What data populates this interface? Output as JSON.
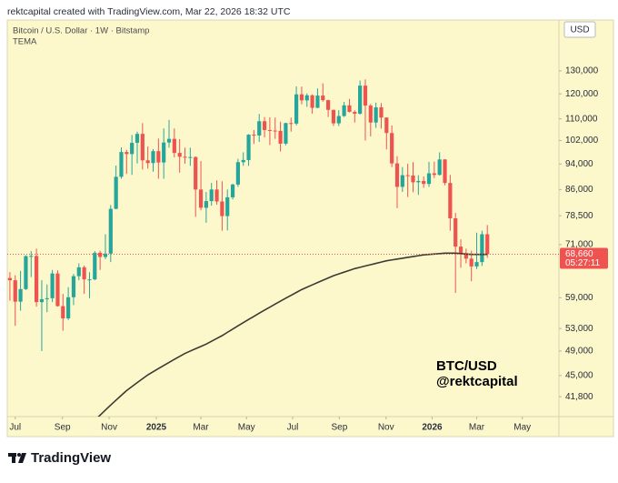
{
  "chart_data": {
    "type": "candlestick",
    "header": "rektcapital created with TradingView.com, Mar 22, 2026 18:32 UTC",
    "title": "Bitcoin / U.S. Dollar · 1W · Bitstamp",
    "axis_unit": "USD",
    "brand": "TradingView",
    "annotations": [
      "BTC/USD",
      "@rektcapital"
    ],
    "log_scale": true,
    "grid": false,
    "up_color": "#26a69a",
    "down_color": "#ef5350",
    "background": "#fcf8cc",
    "categories": [
      null,
      null,
      null,
      null,
      null,
      null,
      null,
      null,
      null,
      null,
      null,
      null,
      null,
      null,
      null,
      null,
      null,
      null,
      null,
      null,
      null,
      null,
      null,
      null,
      null,
      null,
      null,
      null,
      null,
      null,
      null,
      null,
      null,
      null,
      null,
      null,
      null,
      null,
      null,
      null,
      null,
      null,
      null,
      null,
      null,
      null,
      null,
      null,
      null,
      null,
      null,
      null,
      null,
      null,
      null,
      null,
      null,
      null,
      null,
      null,
      null,
      null,
      null,
      null,
      null,
      null,
      null,
      null,
      null,
      null,
      null,
      null,
      null,
      null,
      null,
      null,
      null,
      null,
      null,
      null,
      null,
      null,
      null,
      null,
      null,
      null,
      null,
      null,
      null,
      null,
      null
    ],
    "open": [
      63200,
      62700,
      58200,
      60800,
      68200,
      68250,
      58100,
      58700,
      58900,
      64200,
      57300,
      54900,
      59100,
      63600,
      65600,
      62900,
      62900,
      69000,
      68000,
      68800,
      80400,
      89900,
      98000,
      97300,
      101200,
      104400,
      95200,
      94300,
      98300,
      94500,
      101300,
      102600,
      97700,
      96400,
      96100,
      96300,
      86000,
      80700,
      82600,
      86000,
      82500,
      78400,
      83700,
      87500,
      94600,
      95300,
      104100,
      103800,
      109100,
      105800,
      105600,
      105500,
      100900,
      108400,
      108200,
      119800,
      117300,
      119400,
      114300,
      119300,
      117400,
      113500,
      108300,
      111100,
      115300,
      112700,
      112000,
      123500,
      115200,
      108600,
      114500,
      110500,
      104700,
      94200,
      86800,
      90400,
      90300,
      88200,
      88600,
      87700,
      91000,
      90500,
      95500,
      88000,
      77800,
      70500,
      68900,
      67600,
      65800,
      66800,
      73600
    ],
    "high": [
      64500,
      63800,
      64800,
      68400,
      69400,
      70000,
      62700,
      61800,
      65000,
      64900,
      59800,
      61200,
      64100,
      66500,
      66000,
      64500,
      69400,
      69500,
      73600,
      81500,
      93500,
      99600,
      98700,
      104000,
      105200,
      108400,
      99900,
      99000,
      102700,
      106400,
      109600,
      106400,
      102500,
      99500,
      99500,
      96500,
      95000,
      85300,
      88000,
      88800,
      88500,
      86000,
      87800,
      95700,
      97900,
      104300,
      105800,
      111900,
      110700,
      110600,
      110500,
      108900,
      108500,
      110500,
      123200,
      123100,
      120200,
      119800,
      122300,
      124500,
      117600,
      113600,
      113400,
      116700,
      117900,
      113300,
      125700,
      126200,
      115900,
      116400,
      116200,
      110600,
      107500,
      96600,
      93000,
      94100,
      94600,
      90400,
      90000,
      94700,
      94800,
      97900,
      95600,
      90500,
      79300,
      72300,
      70000,
      69500,
      74000,
      74500,
      76000
    ],
    "low": [
      58400,
      53500,
      56400,
      60600,
      63400,
      57200,
      49000,
      56100,
      58100,
      57200,
      52600,
      54600,
      57500,
      62700,
      59800,
      58900,
      62700,
      65000,
      67500,
      66800,
      80300,
      89300,
      90800,
      90500,
      94200,
      92200,
      92500,
      91500,
      89300,
      89300,
      99500,
      96200,
      91200,
      94100,
      93400,
      78200,
      80000,
      76600,
      81300,
      81600,
      74500,
      74600,
      83100,
      86800,
      93400,
      93400,
      100800,
      101500,
      103100,
      100400,
      102600,
      98200,
      100300,
      105200,
      107500,
      115700,
      114700,
      112000,
      114200,
      116800,
      110700,
      107300,
      107300,
      110700,
      112500,
      108600,
      111600,
      102000,
      103500,
      106600,
      106300,
      98900,
      93000,
      80600,
      85300,
      83800,
      85200,
      84400,
      86500,
      86800,
      89500,
      90300,
      87300,
      74500,
      60000,
      65500,
      66500,
      62500,
      65200,
      65900,
      67800
    ],
    "close": [
      62700,
      58200,
      60800,
      68200,
      68250,
      58100,
      58700,
      58900,
      64200,
      57300,
      54900,
      59100,
      63600,
      65600,
      62900,
      62900,
      69000,
      68000,
      68800,
      80400,
      89900,
      98000,
      97300,
      101200,
      104400,
      95200,
      94300,
      98300,
      94500,
      101300,
      102600,
      97700,
      96400,
      96100,
      96300,
      86000,
      80700,
      82600,
      86000,
      82500,
      78400,
      83700,
      87500,
      94600,
      95300,
      104100,
      103800,
      109100,
      105800,
      105600,
      105500,
      100900,
      108400,
      108200,
      119800,
      117300,
      119400,
      114300,
      119300,
      117400,
      113500,
      108300,
      111100,
      115300,
      112700,
      112000,
      123500,
      115200,
      108600,
      114500,
      110500,
      104700,
      94200,
      86800,
      90400,
      90300,
      88200,
      88600,
      87700,
      91000,
      90500,
      95500,
      88000,
      77800,
      70500,
      68900,
      67600,
      65800,
      66800,
      73600,
      68660
    ],
    "overlay": {
      "name": "TEMA",
      "color": "#3c3a32",
      "values": [
        null,
        null,
        null,
        null,
        null,
        null,
        null,
        null,
        null,
        null,
        null,
        null,
        null,
        null,
        null,
        37800,
        38500,
        39200,
        39900,
        40600,
        41300,
        42000,
        42700,
        43300,
        43900,
        44500,
        45100,
        45600,
        46100,
        46600,
        47100,
        47600,
        48100,
        48600,
        49000,
        49400,
        49800,
        50200,
        50700,
        51200,
        51700,
        52300,
        52900,
        53500,
        54100,
        54700,
        55300,
        55900,
        56500,
        57100,
        57700,
        58300,
        58900,
        59500,
        60100,
        60700,
        61200,
        61700,
        62200,
        62700,
        63200,
        63700,
        64100,
        64500,
        64900,
        65300,
        65600,
        65900,
        66200,
        66500,
        66800,
        67100,
        67300,
        67500,
        67700,
        67900,
        68100,
        68300,
        68500,
        68600,
        68700,
        68800,
        68900,
        68900,
        68900,
        68800,
        68700,
        68600,
        68600,
        68600,
        68600
      ]
    },
    "last_price": {
      "value": 68660,
      "label": "68,660"
    },
    "countdown": "05:27:11",
    "xlim": [
      -0.5,
      103.5
    ],
    "xticks": [
      {
        "value": 1,
        "label": "Jul"
      },
      {
        "value": 9.9,
        "label": "Sep"
      },
      {
        "value": 18.7,
        "label": "Nov"
      },
      {
        "value": 27.6,
        "label": "2025"
      },
      {
        "value": 36,
        "label": "Mar"
      },
      {
        "value": 44.6,
        "label": "May"
      },
      {
        "value": 53.3,
        "label": "Jul"
      },
      {
        "value": 62.1,
        "label": "Sep"
      },
      {
        "value": 70.9,
        "label": "Nov"
      },
      {
        "value": 79.6,
        "label": "2026"
      },
      {
        "value": 88,
        "label": "Mar"
      },
      {
        "value": 96.6,
        "label": "May"
      }
    ],
    "ylim": [
      39000,
      155200
    ],
    "yticks": [
      {
        "value": 130000,
        "label": "130,000"
      },
      {
        "value": 120000,
        "label": "120,000"
      },
      {
        "value": 110000,
        "label": "110,000"
      },
      {
        "value": 102000,
        "label": "102,000"
      },
      {
        "value": 94000,
        "label": "94,000"
      },
      {
        "value": 86000,
        "label": "86,000"
      },
      {
        "value": 78500,
        "label": "78,500"
      },
      {
        "value": 71000,
        "label": "71,000"
      },
      {
        "value": 59000,
        "label": "59,000"
      },
      {
        "value": 53000,
        "label": "53,000"
      },
      {
        "value": 49000,
        "label": "49,000"
      },
      {
        "value": 45000,
        "label": "45,000"
      },
      {
        "value": 41800,
        "label": "41,800"
      }
    ]
  }
}
